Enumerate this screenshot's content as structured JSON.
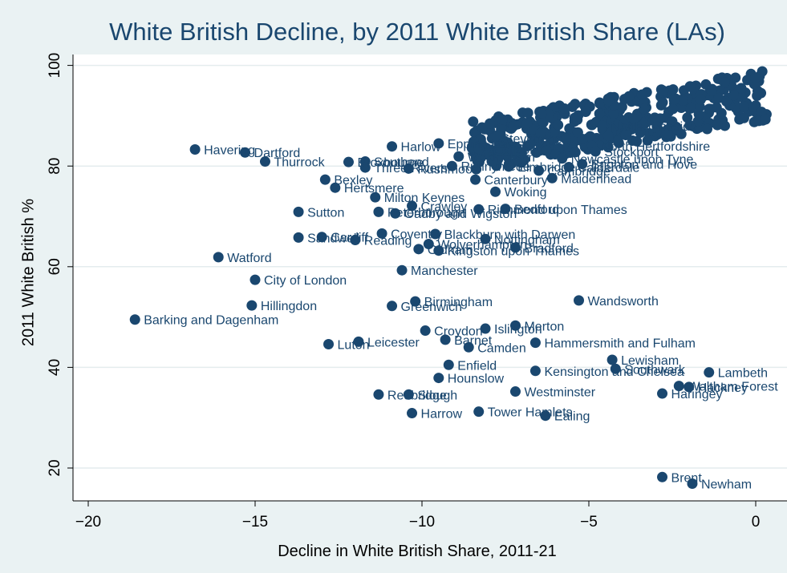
{
  "chart_data": {
    "type": "scatter",
    "title": "White British Decline, by 2011 White British Share (LAs)",
    "xlabel": "Decline in White British Share, 2011-21",
    "ylabel": "2011 White British %",
    "xlim": [
      -20.5,
      0.4
    ],
    "ylim": [
      14,
      102
    ],
    "x_ticks": [
      -20,
      -15,
      -10,
      -5,
      0
    ],
    "y_ticks": [
      20,
      40,
      60,
      80,
      100
    ],
    "grid": "horizontal",
    "marker_color": "#1a476f",
    "points": [
      {
        "label": "Havering",
        "x": -16.8,
        "y": 83.3
      },
      {
        "label": "Dartford",
        "x": -15.3,
        "y": 82.7
      },
      {
        "label": "Thurrock",
        "x": -14.7,
        "y": 80.9
      },
      {
        "label": "Bexley",
        "x": -12.9,
        "y": 77.3
      },
      {
        "label": "Hertsmere",
        "x": -12.6,
        "y": 75.7
      },
      {
        "label": "Broxbourne",
        "x": -12.2,
        "y": 80.8
      },
      {
        "label": "Southend",
        "x": -11.7,
        "y": 80.9
      },
      {
        "label": "Three Rivers",
        "x": -11.7,
        "y": 79.7
      },
      {
        "label": "Milton Keynes",
        "x": -11.4,
        "y": 73.8
      },
      {
        "label": "Sutton",
        "x": -13.7,
        "y": 70.9
      },
      {
        "label": "Peterborough",
        "x": -11.3,
        "y": 70.9
      },
      {
        "label": "Crawley",
        "x": -10.3,
        "y": 72.1
      },
      {
        "label": "Oadby and Wigston",
        "x": -10.8,
        "y": 70.6
      },
      {
        "label": "Richmond upon Thames",
        "x": -8.3,
        "y": 71.4
      },
      {
        "label": "Bedford",
        "x": -7.5,
        "y": 71.5
      },
      {
        "label": "Woking",
        "x": -7.8,
        "y": 74.9
      },
      {
        "label": "Sandwell",
        "x": -13.7,
        "y": 65.8
      },
      {
        "label": "Cardiff",
        "x": -13.0,
        "y": 65.9
      },
      {
        "label": "Reading",
        "x": -12.0,
        "y": 65.3
      },
      {
        "label": "Coventry",
        "x": -11.2,
        "y": 66.6
      },
      {
        "label": "Blackburn with Darwen",
        "x": -9.6,
        "y": 66.5
      },
      {
        "label": "Wolverhampton",
        "x": -9.8,
        "y": 64.5
      },
      {
        "label": "Oldham",
        "x": -10.1,
        "y": 63.5
      },
      {
        "label": "Kingston upon Thames",
        "x": -9.5,
        "y": 63.2
      },
      {
        "label": "Bradford",
        "x": -7.2,
        "y": 63.8
      },
      {
        "label": "Nottingham",
        "x": -8.1,
        "y": 65.5
      },
      {
        "label": "Watford",
        "x": -16.1,
        "y": 61.9
      },
      {
        "label": "City of London",
        "x": -15.0,
        "y": 57.4
      },
      {
        "label": "Manchester",
        "x": -10.6,
        "y": 59.3
      },
      {
        "label": "Hillingdon",
        "x": -15.1,
        "y": 52.3
      },
      {
        "label": "Birmingham",
        "x": -10.2,
        "y": 53.1
      },
      {
        "label": "Greenwich",
        "x": -10.9,
        "y": 52.2
      },
      {
        "label": "Wandsworth",
        "x": -5.3,
        "y": 53.3
      },
      {
        "label": "Barking and Dagenham",
        "x": -18.6,
        "y": 49.5
      },
      {
        "label": "Croydon",
        "x": -9.9,
        "y": 47.3
      },
      {
        "label": "Islington",
        "x": -8.1,
        "y": 47.7
      },
      {
        "label": "Merton",
        "x": -7.2,
        "y": 48.3
      },
      {
        "label": "Luton",
        "x": -12.8,
        "y": 44.6
      },
      {
        "label": "Leicester",
        "x": -11.9,
        "y": 45.1
      },
      {
        "label": "Barnet",
        "x": -9.3,
        "y": 45.5
      },
      {
        "label": "Camden",
        "x": -8.6,
        "y": 44.0
      },
      {
        "label": "Hammersmith and Fulham",
        "x": -6.6,
        "y": 44.9
      },
      {
        "label": "Lewisham",
        "x": -4.3,
        "y": 41.5
      },
      {
        "label": "Southwark",
        "x": -4.2,
        "y": 39.7
      },
      {
        "label": "Kensington and Chelsea",
        "x": -6.6,
        "y": 39.3
      },
      {
        "label": "Lambeth",
        "x": -1.4,
        "y": 39.0
      },
      {
        "label": "Enfield",
        "x": -9.2,
        "y": 40.5
      },
      {
        "label": "Hounslow",
        "x": -9.5,
        "y": 37.9
      },
      {
        "label": "Waltham Forest",
        "x": -2.3,
        "y": 36.3
      },
      {
        "label": "Hackney",
        "x": -2.0,
        "y": 36.1
      },
      {
        "label": "Westminster",
        "x": -7.2,
        "y": 35.2
      },
      {
        "label": "Haringey",
        "x": -2.8,
        "y": 34.8
      },
      {
        "label": "Redbridge",
        "x": -11.3,
        "y": 34.6
      },
      {
        "label": "Slough",
        "x": -10.4,
        "y": 34.6
      },
      {
        "label": "Harrow",
        "x": -10.3,
        "y": 30.9
      },
      {
        "label": "Tower Hamlets",
        "x": -8.3,
        "y": 31.2
      },
      {
        "label": "Ealing",
        "x": -6.3,
        "y": 30.4
      },
      {
        "label": "Brent",
        "x": -2.8,
        "y": 18.2
      },
      {
        "label": "Newham",
        "x": -1.9,
        "y": 16.9
      },
      {
        "label": "North Hertfordshire",
        "x": -4.9,
        "y": 84.0
      },
      {
        "label": "North Tyneside",
        "x": -4.6,
        "y": 88.0
      },
      {
        "label": "Brighton and Hove",
        "x": -5.2,
        "y": 80.4
      },
      {
        "label": "Stockport",
        "x": -4.8,
        "y": 82.9
      },
      {
        "label": "Calderdale",
        "x": -5.6,
        "y": 79.8
      },
      {
        "label": "Maidenhead",
        "x": -6.1,
        "y": 77.6
      },
      {
        "label": "Newcastle upon Tyne",
        "x": -5.8,
        "y": 81.5
      },
      {
        "label": "Cambridge",
        "x": -6.5,
        "y": 79.1
      },
      {
        "label": "Runnymede",
        "x": -9.1,
        "y": 80.0
      },
      {
        "label": "Canterbury",
        "x": -8.4,
        "y": 77.3
      },
      {
        "label": "Elmbridge",
        "x": -7.4,
        "y": 79.9
      },
      {
        "label": "Harlow",
        "x": -10.9,
        "y": 83.9
      },
      {
        "label": "Epping Forest",
        "x": -9.5,
        "y": 84.5
      },
      {
        "label": "Rushmoor",
        "x": -10.4,
        "y": 79.5
      },
      {
        "label": "Wokingham",
        "x": -8.9,
        "y": 81.9
      },
      {
        "label": "Basildon",
        "x": -8.3,
        "y": 83.4
      },
      {
        "label": "Stevenage",
        "x": -7.9,
        "y": 85.5
      }
    ]
  }
}
